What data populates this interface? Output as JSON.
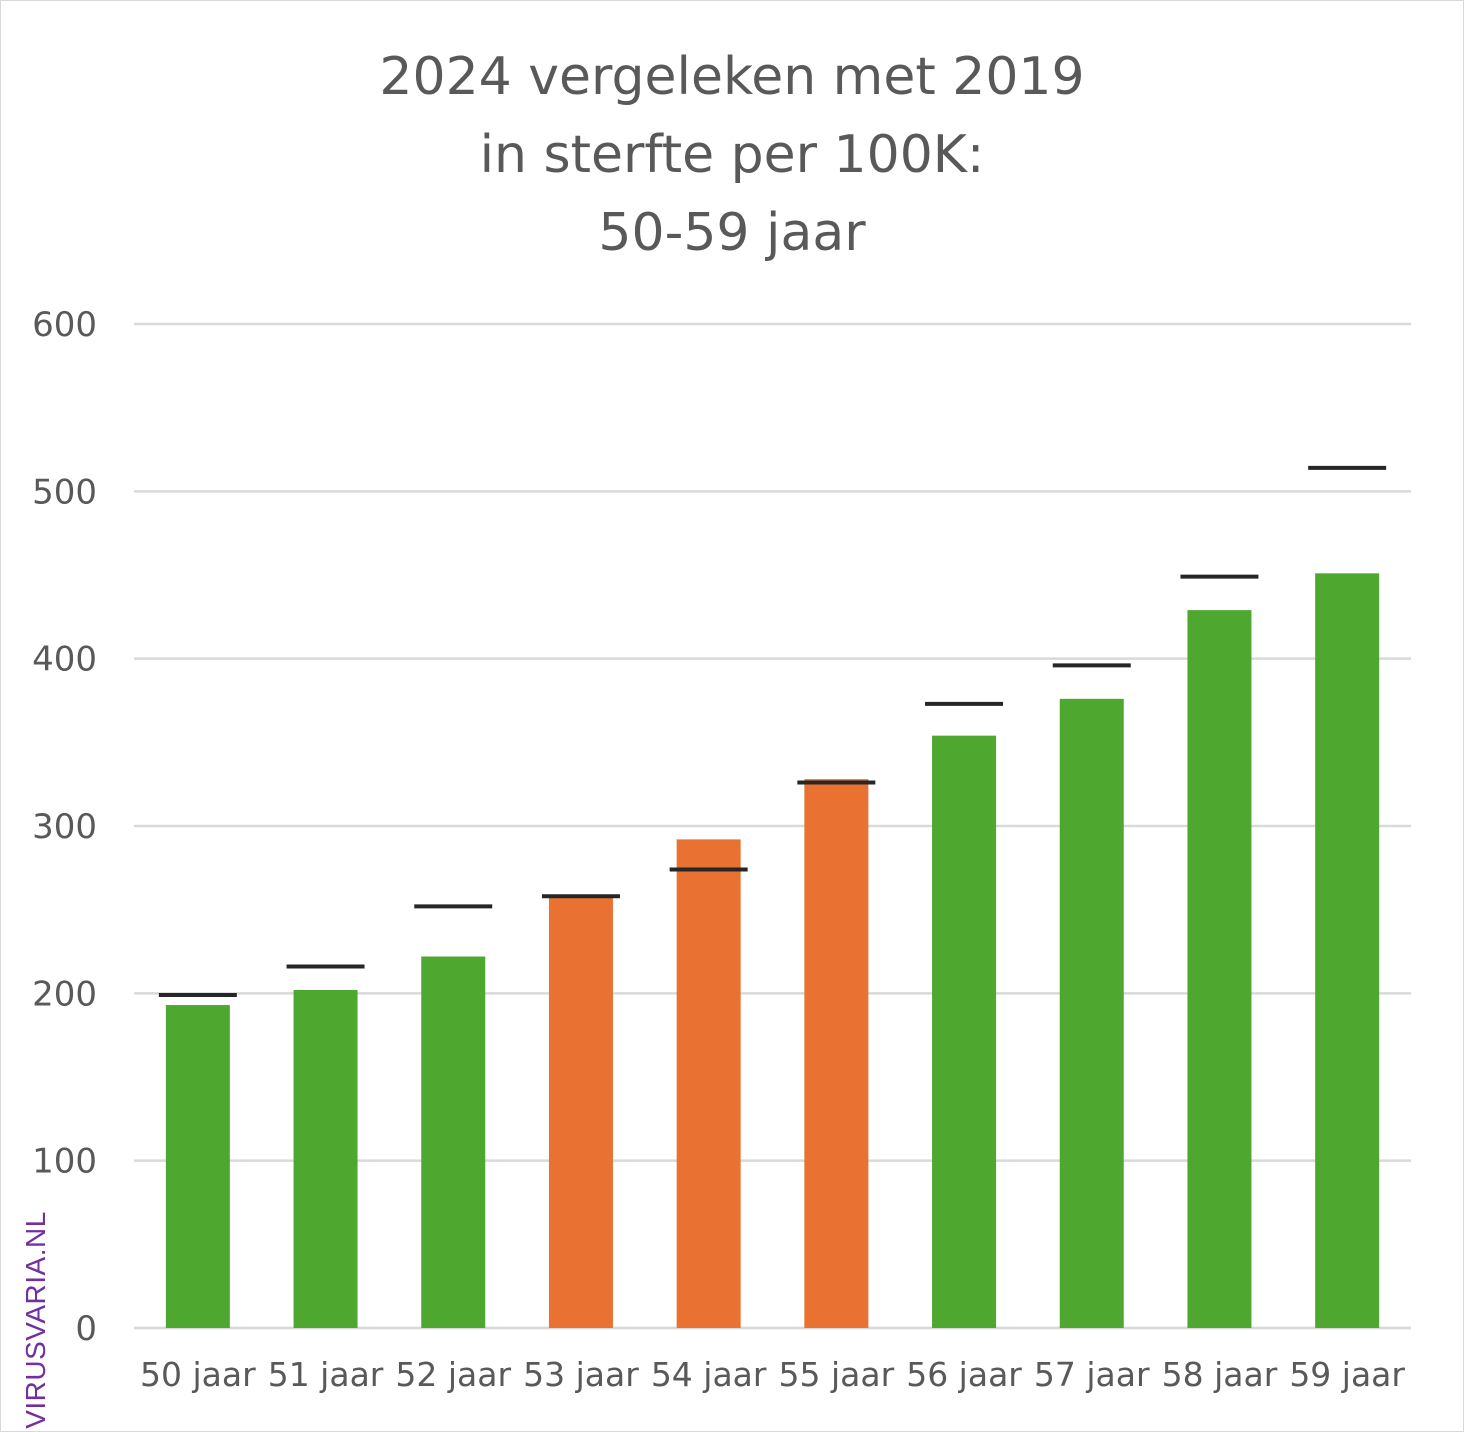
{
  "chart_data": {
    "type": "bar",
    "title_lines": [
      "2024 vergeleken met 2019",
      "in sterfte per 100K:",
      "50-59 jaar"
    ],
    "categories": [
      "50 jaar",
      "51 jaar",
      "52 jaar",
      "53 jaar",
      "54 jaar",
      "55 jaar",
      "56 jaar",
      "57 jaar",
      "58 jaar",
      "59 jaar"
    ],
    "series": [
      {
        "name": "2024",
        "values": [
          193,
          202,
          222,
          258,
          292,
          328,
          354,
          376,
          429,
          451
        ],
        "colors": [
          "#4ea72e",
          "#4ea72e",
          "#4ea72e",
          "#e97132",
          "#e97132",
          "#e97132",
          "#4ea72e",
          "#4ea72e",
          "#4ea72e",
          "#4ea72e"
        ]
      },
      {
        "name": "2019",
        "marker": "dash",
        "values": [
          199,
          216,
          252,
          258,
          274,
          326,
          373,
          396,
          449,
          514
        ],
        "color": "#262626"
      }
    ],
    "ylim": [
      0,
      600
    ],
    "yticks": [
      0,
      100,
      200,
      300,
      400,
      500,
      600
    ],
    "grid": true,
    "xlabel": "",
    "ylabel": ""
  },
  "colors": {
    "increase": "#e97132",
    "decrease": "#4ea72e",
    "gridline": "#d9d9d9",
    "text": "#595959"
  },
  "watermark": "VIRUSVARIA.NL"
}
